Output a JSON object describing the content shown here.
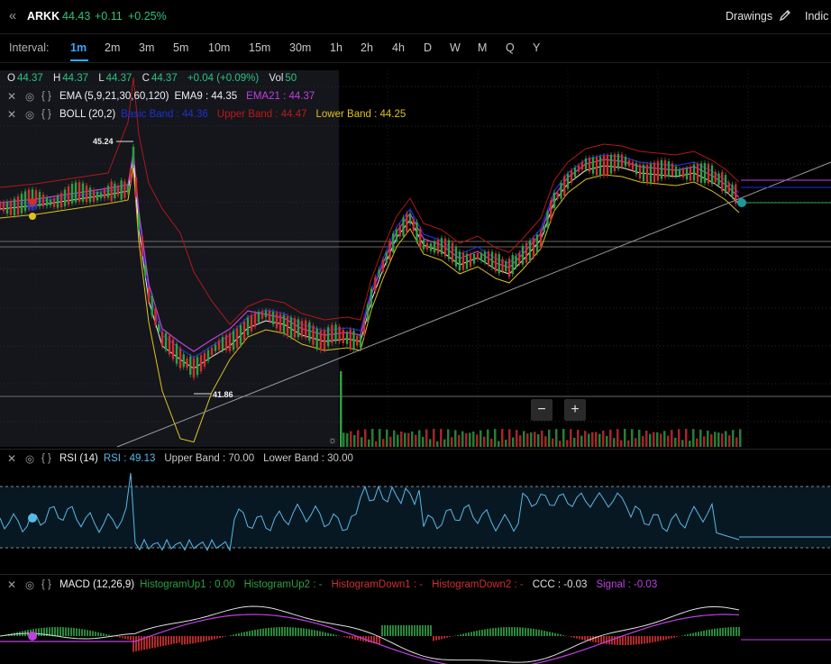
{
  "header": {
    "back_icon": "double-chevron-left-icon",
    "ticker": "ARKK",
    "price": "44.43",
    "change": "+0.11",
    "change_pct": "+0.25%",
    "drawings_label": "Drawings",
    "pencil_icon": "pencil-icon",
    "indicators_label": "Indic",
    "positive_color": "#2ec27e"
  },
  "intervals": {
    "label": "Interval:",
    "items": [
      "1m",
      "2m",
      "3m",
      "5m",
      "10m",
      "15m",
      "30m",
      "1h",
      "2h",
      "4h",
      "D",
      "W",
      "M",
      "Q",
      "Y"
    ],
    "active": "1m",
    "active_color": "#3ba7ff"
  },
  "ohlc": {
    "o_label": "O",
    "o": "44.37",
    "h_label": "H",
    "h": "44.37",
    "l_label": "L",
    "l": "44.37",
    "c_label": "C",
    "c": "44.37",
    "change": "+0.04 (+0.09%)",
    "vol_label": "Vol",
    "vol": "50"
  },
  "indicators": {
    "ema": {
      "name": "EMA (5,9,21,30,60,120)",
      "v1": "EMA9 : 44.35",
      "v2": "EMA21 : 44.37",
      "v2_color": "#c040e0"
    },
    "boll": {
      "name": "BOLL (20,2)",
      "v1": "Basic Band : 44.36",
      "v1_color": "#2030d0",
      "v2": "Upper Band : 44.47",
      "v2_color": "#c01818",
      "v3": "Lower Band : 44.25",
      "v3_color": "#e0c020"
    },
    "rsi": {
      "name": "RSI (14)",
      "v1": "RSI : 49.13",
      "v1_color": "#5ab8e8",
      "v2": "Upper Band : 70.00",
      "v3": "Lower Band : 30.00"
    },
    "macd": {
      "name": "MACD (12,26,9)",
      "v1": "HistogramUp1 : 0.00",
      "v2": "HistogramUp2 : -",
      "v3": "HistogramDown1 : -",
      "v4": "HistogramDown2 : -",
      "v5": "CCC : -0.03",
      "v6": "Signal : -0.03",
      "up_color": "#2ea043",
      "down_color": "#d03030",
      "signal_color": "#c040e0"
    },
    "close_icon": "close-icon",
    "eye_icon": "eye-icon",
    "settings_icon": "braces-icon"
  },
  "chart_annotations": {
    "high_label": "45.24",
    "low_label": "41.86"
  },
  "zoom": {
    "minus_label": "−",
    "plus_label": "+"
  },
  "chart_data": {
    "type": "line",
    "title": "ARKK 1m",
    "series": [
      {
        "name": "Close",
        "values": [
          44.37,
          44.35,
          44.4,
          44.45,
          44.5,
          45.24,
          44.0,
          42.6,
          42.2,
          42.0,
          41.86,
          42.2,
          42.5,
          42.7,
          42.9,
          42.8,
          42.6,
          42.5,
          42.45,
          42.6,
          43.1,
          43.6,
          43.9,
          43.7,
          43.6,
          43.5,
          43.65,
          43.55,
          43.2,
          43.4,
          43.8,
          44.2,
          44.6,
          44.9,
          44.8,
          44.7,
          44.6,
          44.7,
          44.75,
          44.5,
          44.37
        ]
      }
    ],
    "ylabel": "",
    "grid": true
  }
}
